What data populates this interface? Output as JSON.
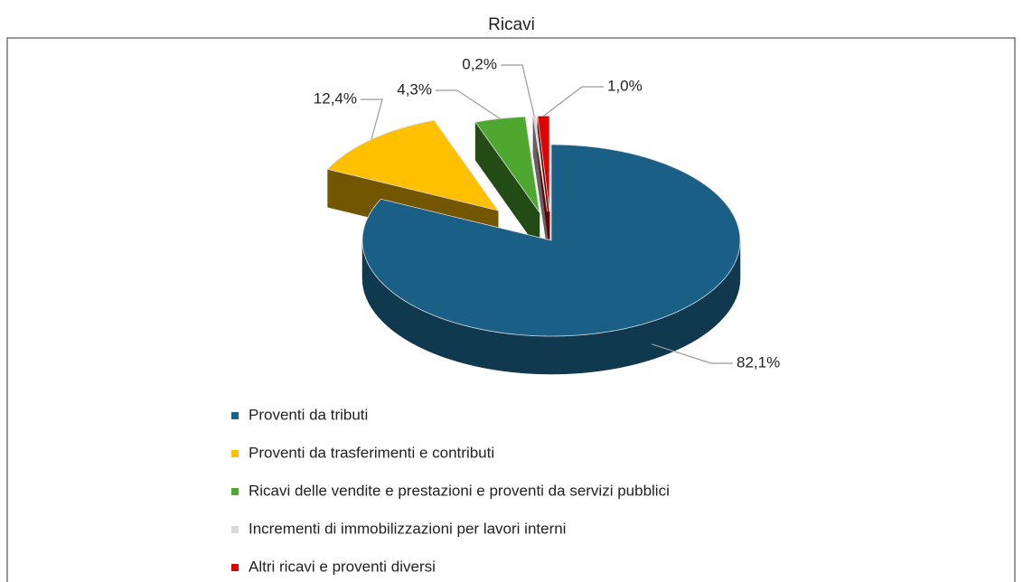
{
  "chart_data": {
    "type": "pie",
    "title": "Ricavi",
    "categories": [
      "Proventi da tributi",
      "Proventi da trasferimenti e contributi",
      "Ricavi delle vendite e prestazioni e proventi da servizi pubblici",
      "Incrementi di immobilizzazioni per lavori interni",
      "Altri ricavi e proventi diversi"
    ],
    "values": [
      82.1,
      12.4,
      4.3,
      0.2,
      1.0
    ],
    "value_labels": [
      "82,1%",
      "12,4%",
      "4,3%",
      "0,2%",
      "1,0%"
    ],
    "colors": [
      "#1a5f85",
      "#ffc000",
      "#4ea72e",
      "#d9d9d9",
      "#e00000"
    ],
    "legend": "bottom"
  }
}
